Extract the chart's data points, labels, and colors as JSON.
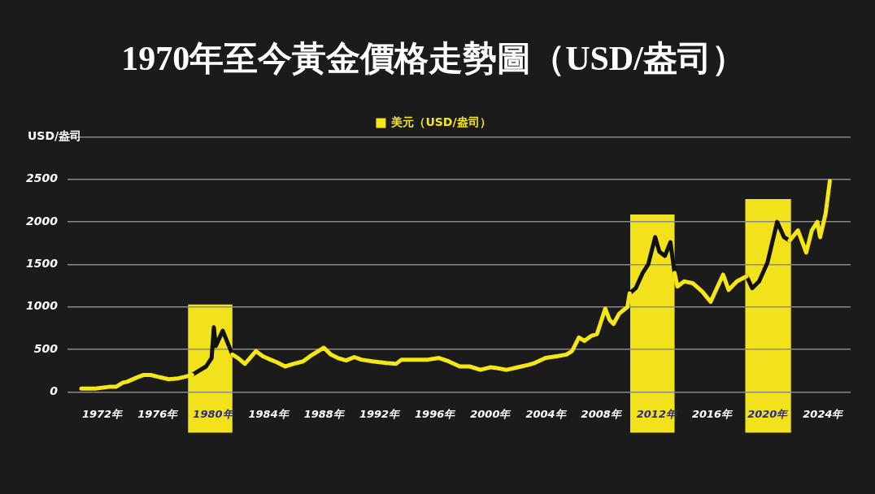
{
  "chart_data": {
    "type": "line",
    "title": "1970年至今黃金價格走勢圖（USD/盎司）",
    "ylabel": "USD/盎司",
    "legend": "top",
    "grid": "y",
    "marker": "none",
    "line_style": "solid",
    "xlim": [
      1969.5,
      2026
    ],
    "xticks": [
      {
        "value": 1972,
        "label": "1972年"
      },
      {
        "value": 1976,
        "label": "1976年"
      },
      {
        "value": 1980,
        "label": "1980年"
      },
      {
        "value": 1984,
        "label": "1984年"
      },
      {
        "value": 1988,
        "label": "1988年"
      },
      {
        "value": 1992,
        "label": "1992年"
      },
      {
        "value": 1996,
        "label": "1996年"
      },
      {
        "value": 2000,
        "label": "2000年"
      },
      {
        "value": 2004,
        "label": "2004年"
      },
      {
        "value": 2008,
        "label": "2008年"
      },
      {
        "value": 2012,
        "label": "2012年"
      },
      {
        "value": 2016,
        "label": "2016年"
      },
      {
        "value": 2020,
        "label": "2020年"
      },
      {
        "value": 2024,
        "label": "2024年"
      }
    ],
    "ylim": [
      0,
      3000
    ],
    "yticks": [
      0,
      500,
      1000,
      1500,
      2000,
      2500,
      {
        "value": 3000,
        "label": null
      }
    ],
    "bands": [
      {
        "axis": "x",
        "from": 1978.2,
        "to": 1981.4,
        "color": "#f2e21b"
      },
      {
        "axis": "x",
        "from": 2010.1,
        "to": 2013.3,
        "color": "#f2e21b"
      },
      {
        "axis": "x",
        "from": 2018.4,
        "to": 2021.7,
        "color": "#f2e21b"
      }
    ],
    "series": [
      {
        "name": "美元（USD/盎司）",
        "color": "#f5e616",
        "x": [
          1970.5,
          1971.5,
          1972.5,
          1973.0,
          1973.5,
          1973.8,
          1974.5,
          1975.0,
          1975.5,
          1976.0,
          1976.8,
          1977.5,
          1978.0,
          1978.5,
          1980.0,
          1981.4,
          1981.8,
          1982.3,
          1983.1,
          1983.6,
          1984.0,
          1984.6,
          1985.2,
          1985.8,
          1986.5,
          1987.0,
          1988.0,
          1988.5,
          1989.0,
          1989.6,
          1990.2,
          1990.7,
          1991.5,
          1992.5,
          1993.2,
          1993.6,
          1994.5,
          1995.5,
          1996.3,
          1997.0,
          1997.8,
          1998.5,
          1999.3,
          2000.0,
          2000.5,
          2001.2,
          2002.0,
          2002.8,
          2003.2,
          2004.0,
          2004.8,
          2005.5,
          2005.9,
          2006.4,
          2006.8,
          2007.3,
          2007.7,
          2008.3,
          2008.6,
          2008.9,
          2009.3,
          2009.9,
          2010.06,
          2011.5,
          2013.3,
          2013.5,
          2014.0,
          2014.6,
          2015.3,
          2015.9,
          2016.8,
          2017.2,
          2017.8,
          2018.5,
          2020.0,
          2021.6,
          2022.2,
          2022.8,
          2023.2,
          2023.6,
          2023.8,
          2024.2,
          2024.5
        ],
        "values": [
          40,
          40,
          60,
          60,
          110,
          120,
          170,
          200,
          200,
          180,
          150,
          160,
          180,
          200,
          null,
          440,
          400,
          330,
          480,
          420,
          390,
          350,
          300,
          330,
          360,
          420,
          520,
          440,
          400,
          370,
          410,
          380,
          360,
          340,
          330,
          380,
          380,
          380,
          400,
          360,
          300,
          300,
          260,
          290,
          280,
          260,
          290,
          320,
          340,
          400,
          420,
          440,
          480,
          640,
          600,
          660,
          680,
          980,
          850,
          800,
          920,
          1000,
          1160,
          null,
          1400,
          1240,
          1300,
          1280,
          1180,
          1060,
          1380,
          1200,
          1300,
          1360,
          null,
          1780,
          1900,
          1640,
          1900,
          2000,
          1820,
          2100,
          2480
        ]
      },
      {
        "color": "#111111",
        "x": [
          1978.5,
          1979.0,
          1979.5,
          1979.9,
          1980.06,
          1980.2,
          1980.7,
          1981.0,
          1981.4,
          1995.0,
          2010.06,
          2010.5,
          2011.0,
          2011.4,
          2011.9,
          2012.2,
          2012.6,
          2013.0,
          2013.3,
          2016.0,
          2018.5,
          2018.9,
          2019.4,
          2020.0,
          2020.7,
          2021.2,
          2021.6
        ],
        "values": [
          200,
          250,
          300,
          400,
          760,
          540,
          720,
          600,
          440,
          null,
          1160,
          1220,
          1400,
          1500,
          1820,
          1650,
          1600,
          1760,
          1400,
          null,
          1360,
          1220,
          1300,
          1520,
          2000,
          1820,
          1780
        ]
      }
    ]
  }
}
